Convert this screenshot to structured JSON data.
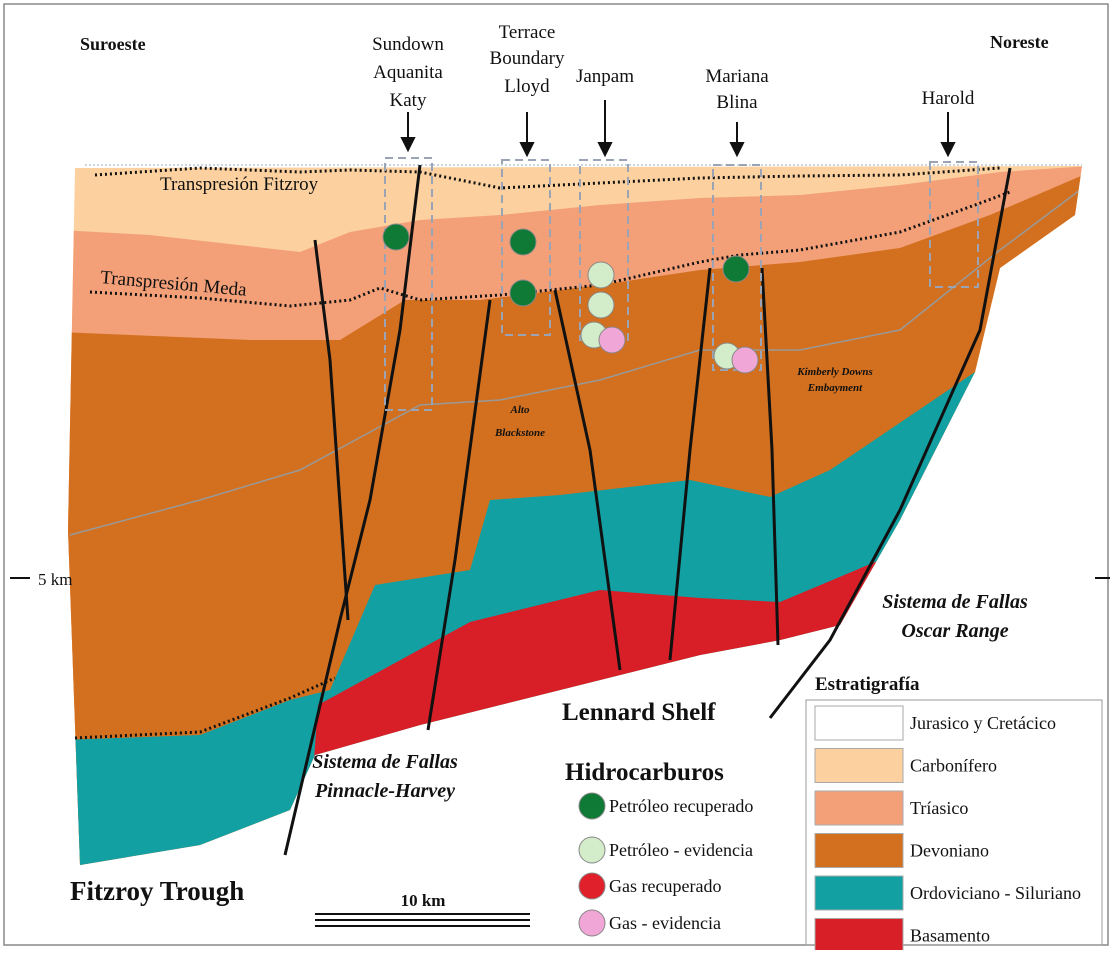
{
  "header": {
    "left": "Suroeste",
    "right": "Noreste"
  },
  "wells": [
    {
      "lines": [
        "Sundown",
        "Aquanita",
        "Katy"
      ]
    },
    {
      "lines": [
        "Terrace",
        "Boundary",
        "Lloyd"
      ]
    },
    {
      "lines": [
        "Janpam"
      ]
    },
    {
      "lines": [
        "Mariana",
        "Blina"
      ]
    },
    {
      "lines": [
        "Harold"
      ]
    }
  ],
  "annotations": {
    "transpresion_fitzroy": "Transpresión Fitzroy",
    "transpresion_meda": "Transpresión Meda",
    "alto_blackstone": [
      "Alto",
      "Blackstone"
    ],
    "kimberly_downs": [
      "Kimberly Downs",
      "Embayment"
    ],
    "depth": "5 km",
    "oscar_range": [
      "Sistema de Fallas",
      "Oscar Range"
    ],
    "lennard_shelf": "Lennard Shelf",
    "pinnacle_harvey": [
      "Sistema de Fallas",
      "Pinnacle-Harvey"
    ],
    "fitzroy_trough": "Fitzroy Trough",
    "scale": "10 km"
  },
  "hydrocarbons": {
    "title": "Hidrocarburos",
    "items": [
      {
        "label": "Petróleo recuperado",
        "color": "#0f7a35"
      },
      {
        "label": "Petróleo - evidencia",
        "color": "#d3ecc9"
      },
      {
        "label": "Gas recuperado",
        "color": "#e0202a"
      },
      {
        "label": "Gas - evidencia",
        "color": "#f0a6d6"
      }
    ]
  },
  "stratigraphy": {
    "title": "Estratigrafía",
    "items": [
      {
        "label": "Jurasico y Cretácico",
        "color": "#ffffff"
      },
      {
        "label": "Carbonífero",
        "color": "#fcd19f"
      },
      {
        "label": "Tríasico",
        "color": "#f3a079"
      },
      {
        "label": "Devoniano",
        "color": "#d2701f"
      },
      {
        "label": "Ordoviciano - Siluriano",
        "color": "#12a0a2"
      },
      {
        "label": "Basamento",
        "color": "#d81e27"
      }
    ]
  }
}
